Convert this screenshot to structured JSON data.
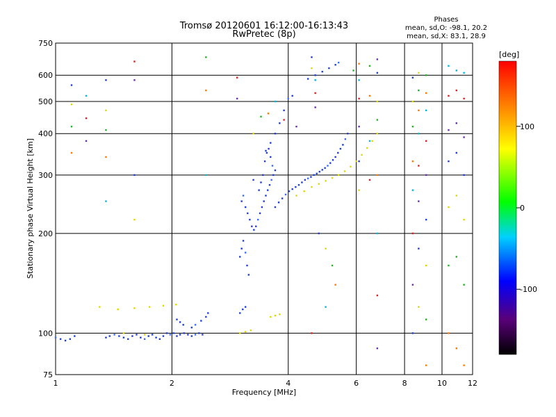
{
  "chart_data": {
    "type": "scatter",
    "title_line1": "Tromsø 20120601 16:12:00-16:13:43",
    "title_line2": "RwPretec (8p)",
    "phases_title": "Phases",
    "phases_line1": "mean, sd,O: -98.1, 20.2",
    "phases_line2": "mean, sd,X: 83.1, 28.9",
    "xlabel": "Frequency [MHz]",
    "ylabel": "Stationary phase Virtual Height [km]",
    "xscale": "log",
    "yscale": "log",
    "xlim": [
      1,
      12
    ],
    "ylim": [
      75,
      750
    ],
    "x_ticks": [
      1,
      2,
      4,
      6,
      8,
      10,
      12
    ],
    "x_tick_labels": [
      "1",
      "2",
      "4",
      "6",
      "8",
      "10",
      "12"
    ],
    "y_ticks": [
      75,
      100,
      200,
      300,
      400,
      500,
      600,
      750
    ],
    "y_tick_labels": [
      "75",
      "100",
      "200",
      "300",
      "400",
      "500",
      "600",
      "750"
    ],
    "grid": true,
    "colorbar": {
      "label": "[deg]",
      "range": [
        -180,
        180
      ],
      "ticks": [
        100,
        0,
        -100
      ],
      "tick_labels": [
        "100",
        "0",
        "-100"
      ]
    },
    "series": [
      {
        "points": [
          [
            1.0,
            97
          ],
          [
            1.03,
            96
          ],
          [
            1.06,
            95
          ],
          [
            1.09,
            96
          ],
          [
            1.12,
            98
          ],
          [
            1.35,
            97
          ],
          [
            1.38,
            98
          ],
          [
            1.42,
            99
          ],
          [
            1.46,
            98
          ],
          [
            1.5,
            97
          ],
          [
            1.54,
            96
          ],
          [
            1.58,
            98
          ],
          [
            1.62,
            99
          ],
          [
            1.66,
            97
          ],
          [
            1.7,
            96
          ],
          [
            1.74,
            98
          ],
          [
            1.78,
            99
          ],
          [
            1.82,
            97
          ],
          [
            1.86,
            96
          ],
          [
            1.9,
            98
          ],
          [
            1.94,
            100
          ],
          [
            1.98,
            99
          ],
          [
            2.02,
            100
          ],
          [
            2.06,
            98
          ],
          [
            2.1,
            99
          ],
          [
            2.15,
            100
          ],
          [
            2.2,
            99
          ],
          [
            2.25,
            98
          ],
          [
            2.3,
            99
          ],
          [
            2.35,
            100
          ],
          [
            2.4,
            99
          ],
          [
            2.06,
            110
          ],
          [
            2.1,
            108
          ],
          [
            2.14,
            106
          ],
          [
            2.25,
            104
          ],
          [
            2.3,
            106
          ],
          [
            2.38,
            109
          ],
          [
            2.45,
            112
          ],
          [
            2.48,
            115
          ],
          [
            3.0,
            170
          ],
          [
            3.03,
            180
          ],
          [
            3.06,
            190
          ],
          [
            3.1,
            175
          ],
          [
            3.13,
            160
          ],
          [
            3.16,
            150
          ],
          [
            3.0,
            115
          ],
          [
            3.05,
            118
          ],
          [
            3.1,
            120
          ],
          [
            3.03,
            250
          ],
          [
            3.06,
            260
          ],
          [
            3.1,
            240
          ],
          [
            3.14,
            230
          ],
          [
            3.18,
            220
          ],
          [
            3.22,
            210
          ],
          [
            3.26,
            205
          ],
          [
            3.3,
            210
          ],
          [
            3.34,
            220
          ],
          [
            3.38,
            230
          ],
          [
            3.42,
            240
          ],
          [
            3.46,
            250
          ],
          [
            3.5,
            260
          ],
          [
            3.54,
            270
          ],
          [
            3.58,
            280
          ],
          [
            3.62,
            290
          ],
          [
            3.66,
            300
          ],
          [
            3.7,
            310
          ],
          [
            3.48,
            330
          ],
          [
            3.52,
            350
          ],
          [
            3.56,
            360
          ],
          [
            3.6,
            340
          ],
          [
            3.64,
            320
          ],
          [
            3.44,
            300
          ],
          [
            3.4,
            285
          ],
          [
            3.36,
            270
          ],
          [
            3.7,
            240
          ],
          [
            3.78,
            248
          ],
          [
            3.86,
            255
          ],
          [
            3.94,
            262
          ],
          [
            4.02,
            268
          ],
          [
            4.1,
            272
          ],
          [
            4.18,
            276
          ],
          [
            4.26,
            280
          ],
          [
            4.34,
            285
          ],
          [
            4.42,
            290
          ],
          [
            4.5,
            293
          ],
          [
            4.58,
            296
          ],
          [
            4.66,
            300
          ],
          [
            4.74,
            303
          ],
          [
            4.82,
            307
          ],
          [
            4.9,
            311
          ],
          [
            4.98,
            315
          ],
          [
            5.06,
            320
          ],
          [
            5.14,
            326
          ],
          [
            5.22,
            333
          ],
          [
            5.3,
            340
          ],
          [
            5.38,
            350
          ],
          [
            5.46,
            360
          ],
          [
            5.54,
            370
          ],
          [
            5.62,
            385
          ],
          [
            5.7,
            400
          ],
          [
            3.5,
            355
          ],
          [
            3.6,
            375
          ],
          [
            3.7,
            400
          ],
          [
            3.8,
            430
          ],
          [
            3.9,
            470
          ],
          [
            4.0,
            510
          ],
          [
            4.1,
            520
          ],
          [
            4.5,
            585
          ],
          [
            4.7,
            600
          ],
          [
            4.9,
            615
          ],
          [
            5.1,
            630
          ],
          [
            5.3,
            645
          ],
          [
            5.4,
            655
          ]
        ]
      },
      {
        "points": [
          [
            4.2,
            260
          ],
          [
            4.4,
            268
          ],
          [
            4.6,
            276
          ],
          [
            4.8,
            282
          ],
          [
            5.0,
            288
          ],
          [
            5.2,
            294
          ],
          [
            5.4,
            300
          ],
          [
            5.6,
            308
          ],
          [
            5.8,
            318
          ],
          [
            6.0,
            330
          ],
          [
            6.2,
            345
          ],
          [
            6.4,
            362
          ],
          [
            6.6,
            380
          ],
          [
            6.8,
            400
          ],
          [
            3.0,
            100
          ],
          [
            3.1,
            101
          ],
          [
            3.2,
            102
          ],
          [
            3.6,
            112
          ],
          [
            3.7,
            113
          ],
          [
            3.8,
            114
          ],
          [
            1.3,
            120
          ],
          [
            1.45,
            118
          ],
          [
            1.6,
            119
          ],
          [
            1.75,
            120
          ],
          [
            1.9,
            121
          ],
          [
            2.05,
            122
          ],
          [
            1.5,
            100
          ],
          [
            1.7,
            99
          ]
        ]
      },
      {
        "points": [
          [
            1.1,
            560
          ],
          [
            1.1,
            490
          ],
          [
            1.1,
            420
          ],
          [
            1.1,
            350
          ],
          [
            1.2,
            520
          ],
          [
            1.2,
            445
          ],
          [
            1.2,
            380
          ],
          [
            1.35,
            580
          ],
          [
            1.35,
            470
          ],
          [
            1.35,
            410
          ],
          [
            1.35,
            340
          ],
          [
            1.35,
            250
          ],
          [
            1.6,
            660
          ],
          [
            1.6,
            580
          ],
          [
            1.6,
            300
          ],
          [
            1.6,
            220
          ],
          [
            2.45,
            680
          ],
          [
            2.45,
            540
          ],
          [
            2.45,
            300
          ],
          [
            2.95,
            590
          ],
          [
            2.95,
            510
          ],
          [
            3.25,
            290
          ],
          [
            3.25,
            400
          ],
          [
            3.4,
            450
          ],
          [
            3.55,
            460
          ],
          [
            3.7,
            500
          ],
          [
            3.9,
            440
          ],
          [
            4.2,
            420
          ],
          [
            4.6,
            680
          ],
          [
            4.6,
            630
          ],
          [
            5.9,
            620
          ],
          [
            6.1,
            650
          ],
          [
            6.1,
            580
          ],
          [
            6.1,
            510
          ],
          [
            6.1,
            420
          ],
          [
            6.1,
            330
          ],
          [
            6.1,
            270
          ],
          [
            6.5,
            640
          ],
          [
            6.5,
            520
          ],
          [
            6.5,
            380
          ],
          [
            6.5,
            290
          ],
          [
            6.8,
            670
          ],
          [
            6.8,
            610
          ],
          [
            6.8,
            500
          ],
          [
            6.8,
            440
          ],
          [
            6.8,
            300
          ],
          [
            6.8,
            200
          ],
          [
            6.8,
            130
          ],
          [
            6.8,
            90
          ],
          [
            8.4,
            590
          ],
          [
            8.4,
            500
          ],
          [
            8.4,
            420
          ],
          [
            8.4,
            330
          ],
          [
            8.4,
            270
          ],
          [
            8.4,
            200
          ],
          [
            8.4,
            140
          ],
          [
            8.4,
            100
          ],
          [
            8.7,
            610
          ],
          [
            8.7,
            540
          ],
          [
            8.7,
            470
          ],
          [
            8.7,
            400
          ],
          [
            8.7,
            320
          ],
          [
            8.7,
            250
          ],
          [
            8.7,
            180
          ],
          [
            8.7,
            120
          ],
          [
            9.1,
            600
          ],
          [
            9.1,
            530
          ],
          [
            9.1,
            470
          ],
          [
            9.1,
            380
          ],
          [
            9.1,
            300
          ],
          [
            9.1,
            220
          ],
          [
            9.1,
            160
          ],
          [
            9.1,
            110
          ],
          [
            9.1,
            80
          ],
          [
            10.4,
            640
          ],
          [
            10.4,
            520
          ],
          [
            10.4,
            410
          ],
          [
            10.4,
            330
          ],
          [
            10.4,
            240
          ],
          [
            10.4,
            160
          ],
          [
            10.4,
            100
          ],
          [
            10.9,
            620
          ],
          [
            10.9,
            540
          ],
          [
            10.9,
            430
          ],
          [
            10.9,
            350
          ],
          [
            10.9,
            260
          ],
          [
            10.9,
            170
          ],
          [
            10.9,
            90
          ],
          [
            11.4,
            610
          ],
          [
            11.4,
            510
          ],
          [
            11.4,
            390
          ],
          [
            11.4,
            300
          ],
          [
            11.4,
            220
          ],
          [
            11.4,
            140
          ],
          [
            11.4,
            80
          ],
          [
            4.7,
            580
          ],
          [
            4.7,
            530
          ],
          [
            4.7,
            480
          ],
          [
            4.8,
            200
          ],
          [
            5.0,
            180
          ],
          [
            5.2,
            160
          ],
          [
            5.3,
            140
          ],
          [
            5.0,
            120
          ],
          [
            4.6,
            100
          ]
        ]
      }
    ]
  }
}
